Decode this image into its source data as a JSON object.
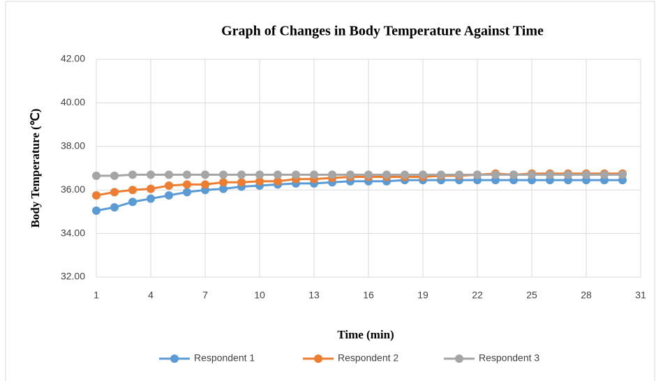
{
  "chart_data": {
    "type": "line",
    "title": "Graph of Changes in Body Temperature Against Time",
    "x_label": "Time (min)",
    "y_label": "Body Temperature (℃)",
    "x": [
      1,
      2,
      3,
      4,
      5,
      6,
      7,
      8,
      9,
      10,
      11,
      12,
      13,
      14,
      15,
      16,
      17,
      18,
      19,
      20,
      21,
      22,
      23,
      24,
      25,
      26,
      27,
      28,
      29,
      30
    ],
    "series": [
      {
        "name": "Respondent 1",
        "color": "#5b9bd5",
        "values": [
          35.05,
          35.2,
          35.45,
          35.6,
          35.75,
          35.9,
          36.0,
          36.05,
          36.15,
          36.2,
          36.25,
          36.3,
          36.3,
          36.35,
          36.4,
          36.4,
          36.4,
          36.45,
          36.45,
          36.45,
          36.45,
          36.45,
          36.45,
          36.45,
          36.45,
          36.45,
          36.45,
          36.45,
          36.45,
          36.45
        ]
      },
      {
        "name": "Respondent 2",
        "color": "#ed7d31",
        "values": [
          35.75,
          35.9,
          36.0,
          36.05,
          36.2,
          36.25,
          36.25,
          36.35,
          36.35,
          36.4,
          36.4,
          36.5,
          36.5,
          36.55,
          36.6,
          36.6,
          36.6,
          36.6,
          36.6,
          36.65,
          36.65,
          36.7,
          36.75,
          36.7,
          36.75,
          36.75,
          36.75,
          36.75,
          36.75,
          36.75
        ]
      },
      {
        "name": "Respondent 3",
        "color": "#a5a5a5",
        "values": [
          36.65,
          36.65,
          36.7,
          36.7,
          36.7,
          36.7,
          36.7,
          36.7,
          36.7,
          36.7,
          36.7,
          36.7,
          36.7,
          36.7,
          36.7,
          36.7,
          36.7,
          36.7,
          36.7,
          36.7,
          36.7,
          36.7,
          36.7,
          36.7,
          36.7,
          36.7,
          36.7,
          36.7,
          36.7,
          36.7
        ]
      }
    ],
    "xlim": [
      1,
      31
    ],
    "xticks": [
      1,
      4,
      7,
      10,
      13,
      16,
      19,
      22,
      25,
      28,
      31
    ],
    "ylim": [
      32,
      42
    ],
    "yticks": [
      {
        "value": 32,
        "label": "32.00"
      },
      {
        "value": 34,
        "label": "34.00"
      },
      {
        "value": 36,
        "label": "36.00"
      },
      {
        "value": 38,
        "label": "38.00"
      },
      {
        "value": 40,
        "label": "40.00"
      },
      {
        "value": 42,
        "label": "42.00"
      }
    ],
    "grid": true,
    "legend": "bottom"
  }
}
